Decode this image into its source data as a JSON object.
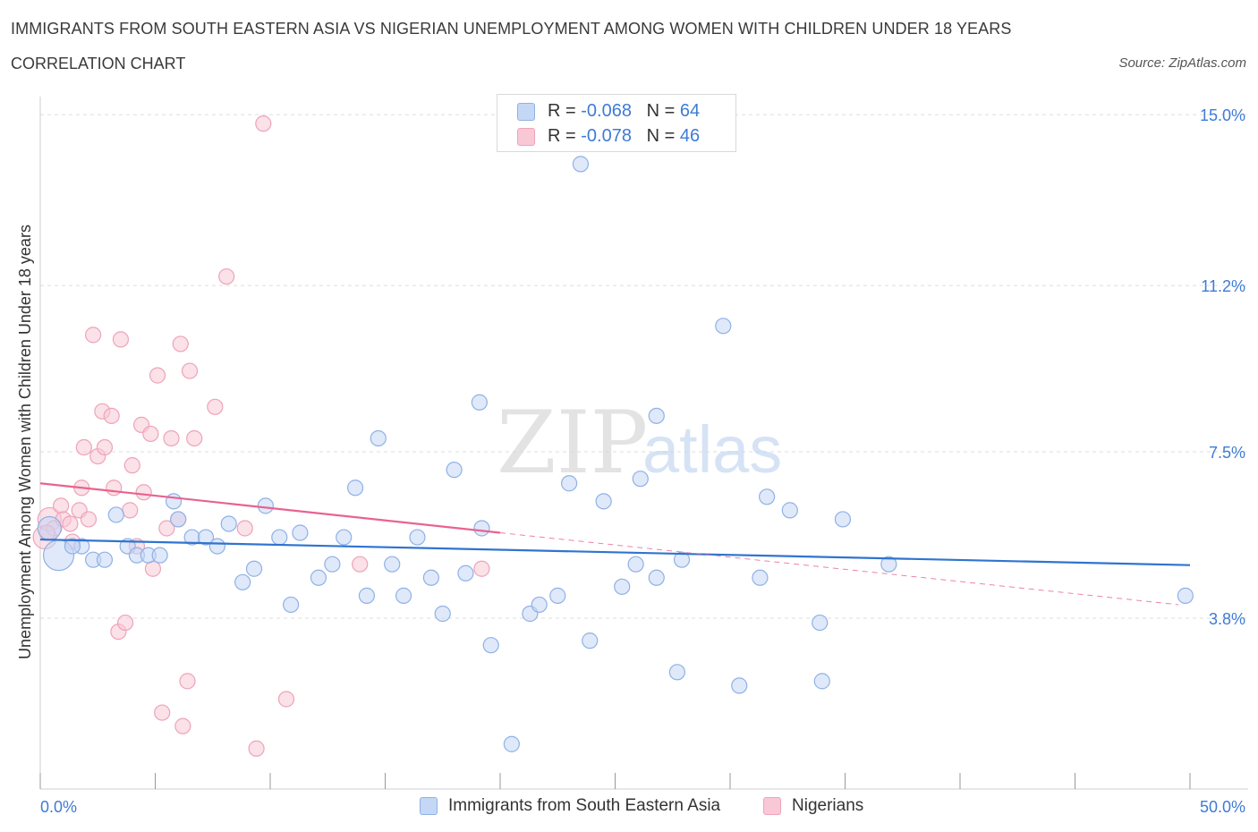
{
  "title": "IMMIGRANTS FROM SOUTH EASTERN ASIA VS NIGERIAN UNEMPLOYMENT AMONG WOMEN WITH CHILDREN UNDER 18 YEARS",
  "subtitle": "CORRELATION CHART",
  "source": "Source: ZipAtlas.com",
  "watermark": {
    "zip": "ZIP",
    "atlas": "atlas"
  },
  "legend": {
    "rows": [
      {
        "r_label": "R = ",
        "r_value": "-0.068",
        "n_label": "N = ",
        "n_value": "64"
      },
      {
        "r_label": "R = ",
        "r_value": "-0.078",
        "n_label": "N = ",
        "n_value": "46"
      }
    ]
  },
  "colors": {
    "blue_fill": "#c4d7f5",
    "blue_stroke": "#8fb1e6",
    "blue_line": "#2f74d0",
    "pink_fill": "#f8c8d6",
    "pink_stroke": "#eea3b9",
    "pink_line": "#e8638f",
    "grid": "#dddddd",
    "axis_label": "#3e7bd6"
  },
  "chart_data": {
    "type": "scatter",
    "ylabel": "Unemployment Among Women with Children Under 18 years",
    "xlim": [
      0,
      50
    ],
    "ylim": [
      0,
      15.4
    ],
    "x_tick_labels": [
      {
        "value": 0,
        "label": "0.0%"
      },
      {
        "value": 50,
        "label": "50.0%"
      }
    ],
    "y_tick_labels": [
      {
        "value": 3.8,
        "label": "3.8%"
      },
      {
        "value": 7.5,
        "label": "7.5%"
      },
      {
        "value": 11.2,
        "label": "11.2%"
      },
      {
        "value": 15.0,
        "label": "15.0%"
      }
    ],
    "series": [
      {
        "name": "Immigrants from South Eastern Asia",
        "r": -0.068,
        "n": 64,
        "trend": {
          "x": [
            0,
            50
          ],
          "y": [
            5.55,
            4.98
          ]
        },
        "points": [
          {
            "x": 0.4,
            "y": 5.8,
            "s": 2
          },
          {
            "x": 0.8,
            "y": 5.2,
            "s": 3
          },
          {
            "x": 1.8,
            "y": 5.4,
            "s": 1
          },
          {
            "x": 2.3,
            "y": 5.1,
            "s": 1
          },
          {
            "x": 2.8,
            "y": 5.1,
            "s": 1
          },
          {
            "x": 3.3,
            "y": 6.1,
            "s": 1
          },
          {
            "x": 3.8,
            "y": 5.4,
            "s": 1
          },
          {
            "x": 4.2,
            "y": 5.2,
            "s": 1
          },
          {
            "x": 4.7,
            "y": 5.2,
            "s": 1
          },
          {
            "x": 5.2,
            "y": 5.2,
            "s": 1
          },
          {
            "x": 5.8,
            "y": 6.4,
            "s": 1
          },
          {
            "x": 6.6,
            "y": 5.6,
            "s": 1
          },
          {
            "x": 7.2,
            "y": 5.6,
            "s": 1
          },
          {
            "x": 7.7,
            "y": 5.4,
            "s": 1
          },
          {
            "x": 8.2,
            "y": 5.9,
            "s": 1
          },
          {
            "x": 8.8,
            "y": 4.6,
            "s": 1
          },
          {
            "x": 9.3,
            "y": 4.9,
            "s": 1
          },
          {
            "x": 9.8,
            "y": 6.3,
            "s": 1
          },
          {
            "x": 10.4,
            "y": 5.6,
            "s": 1
          },
          {
            "x": 10.9,
            "y": 4.1,
            "s": 1
          },
          {
            "x": 11.3,
            "y": 5.7,
            "s": 1
          },
          {
            "x": 12.1,
            "y": 4.7,
            "s": 1
          },
          {
            "x": 12.7,
            "y": 5.0,
            "s": 1
          },
          {
            "x": 13.2,
            "y": 5.6,
            "s": 1
          },
          {
            "x": 13.7,
            "y": 6.7,
            "s": 1
          },
          {
            "x": 14.2,
            "y": 4.3,
            "s": 1
          },
          {
            "x": 14.7,
            "y": 7.8,
            "s": 1
          },
          {
            "x": 15.3,
            "y": 5.0,
            "s": 1
          },
          {
            "x": 15.8,
            "y": 4.3,
            "s": 1
          },
          {
            "x": 16.4,
            "y": 5.6,
            "s": 1
          },
          {
            "x": 17.0,
            "y": 4.7,
            "s": 1
          },
          {
            "x": 17.5,
            "y": 3.9,
            "s": 1
          },
          {
            "x": 18.0,
            "y": 7.1,
            "s": 1
          },
          {
            "x": 18.5,
            "y": 4.8,
            "s": 1
          },
          {
            "x": 19.1,
            "y": 8.6,
            "s": 1
          },
          {
            "x": 19.6,
            "y": 3.2,
            "s": 1
          },
          {
            "x": 19.2,
            "y": 5.8,
            "s": 1
          },
          {
            "x": 20.5,
            "y": 1.0,
            "s": 1
          },
          {
            "x": 21.3,
            "y": 3.9,
            "s": 1
          },
          {
            "x": 21.7,
            "y": 4.1,
            "s": 1
          },
          {
            "x": 22.5,
            "y": 4.3,
            "s": 1
          },
          {
            "x": 23.0,
            "y": 6.8,
            "s": 1
          },
          {
            "x": 23.5,
            "y": 13.9,
            "s": 1
          },
          {
            "x": 23.9,
            "y": 3.3,
            "s": 1
          },
          {
            "x": 24.5,
            "y": 6.4,
            "s": 1
          },
          {
            "x": 25.3,
            "y": 4.5,
            "s": 1
          },
          {
            "x": 25.9,
            "y": 5.0,
            "s": 1
          },
          {
            "x": 26.1,
            "y": 6.9,
            "s": 1
          },
          {
            "x": 26.8,
            "y": 4.7,
            "s": 1
          },
          {
            "x": 26.8,
            "y": 8.3,
            "s": 1
          },
          {
            "x": 27.7,
            "y": 2.6,
            "s": 1
          },
          {
            "x": 27.9,
            "y": 5.1,
            "s": 1
          },
          {
            "x": 29.7,
            "y": 10.3,
            "s": 1
          },
          {
            "x": 30.4,
            "y": 2.3,
            "s": 1
          },
          {
            "x": 31.3,
            "y": 4.7,
            "s": 1
          },
          {
            "x": 31.6,
            "y": 6.5,
            "s": 1
          },
          {
            "x": 32.6,
            "y": 6.2,
            "s": 1
          },
          {
            "x": 33.9,
            "y": 3.7,
            "s": 1
          },
          {
            "x": 34.0,
            "y": 2.4,
            "s": 1
          },
          {
            "x": 34.9,
            "y": 6.0,
            "s": 1
          },
          {
            "x": 36.9,
            "y": 5.0,
            "s": 1
          },
          {
            "x": 49.8,
            "y": 4.3,
            "s": 1
          },
          {
            "x": 1.4,
            "y": 5.4,
            "s": 1
          },
          {
            "x": 6.0,
            "y": 6.0,
            "s": 1
          }
        ]
      },
      {
        "name": "Nigerians",
        "r": -0.078,
        "n": 46,
        "trend": {
          "x": [
            0,
            20
          ],
          "y": [
            6.8,
            5.7
          ]
        },
        "trend_dashed": {
          "x": [
            20,
            49.5
          ],
          "y": [
            5.7,
            4.1
          ]
        },
        "points": [
          {
            "x": 0.2,
            "y": 5.6,
            "s": 2
          },
          {
            "x": 0.4,
            "y": 6.0,
            "s": 2
          },
          {
            "x": 0.6,
            "y": 5.8,
            "s": 1
          },
          {
            "x": 0.9,
            "y": 6.3,
            "s": 1
          },
          {
            "x": 1.0,
            "y": 6.0,
            "s": 1
          },
          {
            "x": 1.3,
            "y": 5.9,
            "s": 1
          },
          {
            "x": 1.4,
            "y": 5.5,
            "s": 1
          },
          {
            "x": 1.7,
            "y": 6.2,
            "s": 1
          },
          {
            "x": 1.8,
            "y": 6.7,
            "s": 1
          },
          {
            "x": 1.9,
            "y": 7.6,
            "s": 1
          },
          {
            "x": 2.1,
            "y": 6.0,
            "s": 1
          },
          {
            "x": 2.3,
            "y": 10.1,
            "s": 1
          },
          {
            "x": 2.5,
            "y": 7.4,
            "s": 1
          },
          {
            "x": 2.7,
            "y": 8.4,
            "s": 1
          },
          {
            "x": 2.8,
            "y": 7.6,
            "s": 1
          },
          {
            "x": 3.1,
            "y": 8.3,
            "s": 1
          },
          {
            "x": 3.2,
            "y": 6.7,
            "s": 1
          },
          {
            "x": 3.4,
            "y": 3.5,
            "s": 1
          },
          {
            "x": 3.5,
            "y": 10.0,
            "s": 1
          },
          {
            "x": 3.7,
            "y": 3.7,
            "s": 1
          },
          {
            "x": 3.9,
            "y": 6.2,
            "s": 1
          },
          {
            "x": 4.0,
            "y": 7.2,
            "s": 1
          },
          {
            "x": 4.2,
            "y": 5.4,
            "s": 1
          },
          {
            "x": 4.5,
            "y": 6.6,
            "s": 1
          },
          {
            "x": 4.4,
            "y": 8.1,
            "s": 1
          },
          {
            "x": 4.8,
            "y": 7.9,
            "s": 1
          },
          {
            "x": 4.9,
            "y": 4.9,
            "s": 1
          },
          {
            "x": 5.1,
            "y": 9.2,
            "s": 1
          },
          {
            "x": 5.3,
            "y": 1.7,
            "s": 1
          },
          {
            "x": 5.5,
            "y": 5.8,
            "s": 1
          },
          {
            "x": 5.7,
            "y": 7.8,
            "s": 1
          },
          {
            "x": 6.0,
            "y": 6.0,
            "s": 1
          },
          {
            "x": 6.1,
            "y": 9.9,
            "s": 1
          },
          {
            "x": 6.2,
            "y": 1.4,
            "s": 1
          },
          {
            "x": 6.4,
            "y": 2.4,
            "s": 1
          },
          {
            "x": 6.5,
            "y": 9.3,
            "s": 1
          },
          {
            "x": 6.7,
            "y": 7.8,
            "s": 1
          },
          {
            "x": 7.6,
            "y": 8.5,
            "s": 1
          },
          {
            "x": 8.1,
            "y": 11.4,
            "s": 1
          },
          {
            "x": 8.9,
            "y": 5.8,
            "s": 1
          },
          {
            "x": 9.4,
            "y": 0.9,
            "s": 1
          },
          {
            "x": 9.7,
            "y": 14.8,
            "s": 1
          },
          {
            "x": 10.7,
            "y": 2.0,
            "s": 1
          },
          {
            "x": 13.9,
            "y": 5.0,
            "s": 1
          },
          {
            "x": 19.2,
            "y": 4.9,
            "s": 1
          },
          {
            "x": 0.3,
            "y": 5.7,
            "s": 1
          }
        ]
      }
    ]
  }
}
